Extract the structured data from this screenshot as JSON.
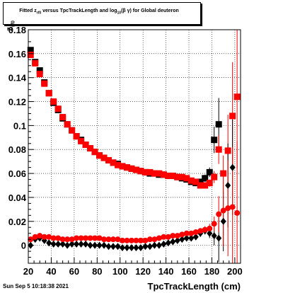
{
  "title": {
    "pre": "Fitted  z",
    "sub1": "rf0",
    "mid": "  versus TpcTrackLength and log",
    "sub2": "10",
    "post": "(β γ) for Global deuteron"
  },
  "timestamp": "Sun Sep  5 10:18:38 2021",
  "chart_data": {
    "type": "scatter",
    "title": "Fitted z_rf0 versus TpcTrackLength and log10(βγ) for Global deuteron",
    "xlabel": "TpcTrackLength (cm)",
    "ylabel": "z",
    "ylabel_sub": "rf0",
    "xlim": [
      20,
      205
    ],
    "ylim": [
      -0.015,
      0.18
    ],
    "xticks": [
      20,
      40,
      60,
      80,
      100,
      120,
      140,
      160,
      180,
      200
    ],
    "yticks": [
      0,
      0.02,
      0.04,
      0.06,
      0.08,
      0.1,
      0.12,
      0.14,
      0.16,
      0.18
    ],
    "ytick_labels": [
      "0",
      "0.02",
      "0.04",
      "0.06",
      "0.08",
      "0.1",
      "0.12",
      "0.14",
      "0.16",
      "0.18"
    ],
    "grid": true,
    "series": [
      {
        "marker": "square",
        "color": "#000000",
        "x": [
          22,
          26,
          30,
          34,
          38,
          42,
          46,
          50,
          54,
          58,
          62,
          66,
          70,
          74,
          78,
          82,
          86,
          90,
          94,
          98,
          102,
          106,
          110,
          114,
          118,
          122,
          126,
          130,
          134,
          138,
          142,
          146,
          150,
          154,
          158,
          162,
          166,
          170,
          174,
          178,
          182,
          186
        ],
        "y": [
          0.163,
          0.153,
          0.146,
          0.136,
          0.127,
          0.119,
          0.113,
          0.106,
          0.101,
          0.096,
          0.091,
          0.088,
          0.084,
          0.081,
          0.078,
          0.075,
          0.073,
          0.071,
          0.069,
          0.068,
          0.066,
          0.065,
          0.064,
          0.063,
          0.062,
          0.061,
          0.06,
          0.06,
          0.059,
          0.059,
          0.058,
          0.058,
          0.057,
          0.056,
          0.055,
          0.053,
          0.052,
          0.053,
          0.056,
          0.061,
          0.088,
          0.101
        ],
        "yerr": [
          0,
          0,
          0,
          0,
          0,
          0,
          0,
          0,
          0,
          0,
          0,
          0,
          0,
          0,
          0,
          0,
          0,
          0,
          0,
          0,
          0,
          0,
          0,
          0,
          0,
          0,
          0,
          0,
          0,
          0,
          0,
          0,
          0,
          0,
          0,
          0,
          0,
          0.002,
          0.003,
          0.004,
          0.011,
          0.022
        ]
      },
      {
        "marker": "square",
        "color": "#ff0000",
        "x": [
          22,
          26,
          30,
          34,
          38,
          42,
          46,
          50,
          54,
          58,
          62,
          66,
          70,
          74,
          78,
          82,
          86,
          90,
          94,
          98,
          102,
          106,
          110,
          114,
          118,
          122,
          126,
          130,
          134,
          138,
          142,
          146,
          150,
          154,
          158,
          162,
          166,
          170,
          174,
          178,
          182,
          186,
          190,
          194,
          198,
          202
        ],
        "y": [
          0.159,
          0.152,
          0.143,
          0.135,
          0.127,
          0.12,
          0.114,
          0.107,
          0.101,
          0.096,
          0.091,
          0.087,
          0.084,
          0.081,
          0.078,
          0.075,
          0.073,
          0.071,
          0.069,
          0.067,
          0.066,
          0.065,
          0.064,
          0.063,
          0.062,
          0.061,
          0.061,
          0.06,
          0.06,
          0.059,
          0.058,
          0.058,
          0.057,
          0.057,
          0.056,
          0.054,
          0.053,
          0.05,
          0.05,
          0.052,
          0.057,
          0.08,
          0.06,
          0.079,
          0.108,
          0.124
        ],
        "yerr": [
          0,
          0,
          0,
          0,
          0,
          0,
          0,
          0,
          0,
          0,
          0,
          0,
          0,
          0,
          0,
          0,
          0,
          0,
          0,
          0,
          0,
          0,
          0,
          0,
          0,
          0,
          0,
          0,
          0,
          0,
          0,
          0,
          0,
          0,
          0,
          0,
          0,
          0.002,
          0.002,
          0.003,
          0.005,
          0.012,
          0.015,
          0.03,
          0.045,
          0.06
        ]
      },
      {
        "marker": "diamond",
        "color": "#000000",
        "x": [
          22,
          26,
          30,
          34,
          38,
          42,
          46,
          50,
          54,
          58,
          62,
          66,
          70,
          74,
          78,
          82,
          86,
          90,
          94,
          98,
          102,
          106,
          110,
          114,
          118,
          122,
          126,
          130,
          134,
          138,
          142,
          146,
          150,
          154,
          158,
          162,
          166,
          170,
          174,
          178,
          182,
          186,
          190,
          194,
          198
        ],
        "y": [
          0,
          0.005,
          0.006,
          0.004,
          0.002,
          0.001,
          0.001,
          0.001,
          0.0,
          0.001,
          0.001,
          0.001,
          0.001,
          0.0,
          0.0,
          0.0,
          0.0,
          -0.001,
          -0.001,
          -0.001,
          -0.002,
          -0.002,
          -0.002,
          -0.002,
          -0.002,
          -0.001,
          -0.001,
          0.0,
          0.0,
          0.001,
          0.002,
          0.003,
          0.004,
          0.005,
          0.006,
          0.006,
          0.007,
          0.01,
          0.012,
          0.01,
          0.008,
          0.006,
          0.02,
          0.05,
          0.065
        ],
        "yerr": [
          0,
          0,
          0,
          0,
          0,
          0,
          0,
          0,
          0,
          0,
          0,
          0,
          0,
          0,
          0,
          0,
          0,
          0,
          0,
          0,
          0,
          0,
          0,
          0,
          0,
          0,
          0,
          0,
          0,
          0,
          0,
          0,
          0,
          0,
          0,
          0,
          0,
          0.003,
          0.003,
          0.004,
          0.008,
          0.02,
          0.025,
          0.035,
          0.04
        ]
      },
      {
        "marker": "circle",
        "color": "#ff0000",
        "x": [
          22,
          26,
          30,
          34,
          38,
          42,
          46,
          50,
          54,
          58,
          62,
          66,
          70,
          74,
          78,
          82,
          86,
          90,
          94,
          98,
          102,
          106,
          110,
          114,
          118,
          122,
          126,
          130,
          134,
          138,
          142,
          146,
          150,
          154,
          158,
          162,
          166,
          170,
          174,
          178,
          182,
          186,
          190,
          194,
          198,
          202
        ],
        "y": [
          0.005,
          0.007,
          0.008,
          0.007,
          0.007,
          0.006,
          0.006,
          0.005,
          0.005,
          0.005,
          0.006,
          0.006,
          0.006,
          0.006,
          0.006,
          0.006,
          0.005,
          0.005,
          0.005,
          0.005,
          0.004,
          0.004,
          0.004,
          0.004,
          0.004,
          0.004,
          0.005,
          0.005,
          0.006,
          0.007,
          0.007,
          0.008,
          0.008,
          0.009,
          0.01,
          0.01,
          0.011,
          0.012,
          0.013,
          0.014,
          0.018,
          0.026,
          0.029,
          0.031,
          0.032,
          0.027
        ],
        "yerr": [
          0,
          0,
          0,
          0,
          0,
          0,
          0,
          0,
          0,
          0,
          0,
          0,
          0,
          0,
          0,
          0,
          0,
          0,
          0,
          0,
          0,
          0,
          0,
          0,
          0,
          0,
          0,
          0,
          0,
          0,
          0,
          0,
          0,
          0,
          0,
          0,
          0,
          0.002,
          0.003,
          0.004,
          0.006,
          0.015,
          0.03,
          0.04,
          0.05,
          0.06
        ]
      }
    ]
  }
}
